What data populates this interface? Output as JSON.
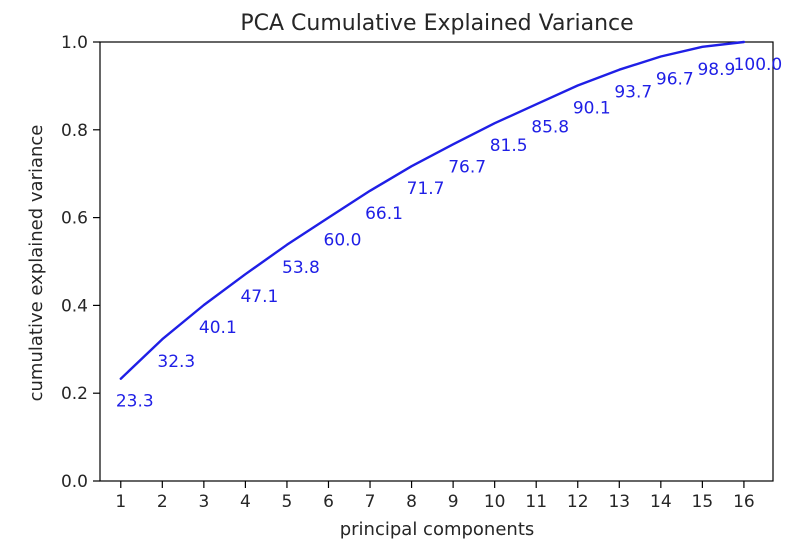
{
  "chart_data": {
    "type": "line",
    "title": "PCA Cumulative Explained Variance",
    "xlabel": "principal components",
    "ylabel": "cumulative explained variance",
    "x": [
      1,
      2,
      3,
      4,
      5,
      6,
      7,
      8,
      9,
      10,
      11,
      12,
      13,
      14,
      15,
      16
    ],
    "xticks": [
      "1",
      "2",
      "3",
      "4",
      "5",
      "6",
      "7",
      "8",
      "9",
      "10",
      "11",
      "12",
      "13",
      "14",
      "15",
      "16"
    ],
    "xlim": [
      0.5,
      16.7
    ],
    "ylim": [
      0.0,
      1.0
    ],
    "yticks": [
      "0.0",
      "0.2",
      "0.4",
      "0.6",
      "0.8",
      "1.0"
    ],
    "grid": false,
    "series": [
      {
        "values": [
          0.233,
          0.323,
          0.401,
          0.471,
          0.538,
          0.6,
          0.661,
          0.717,
          0.767,
          0.815,
          0.858,
          0.901,
          0.937,
          0.967,
          0.989,
          1.0
        ],
        "labels": [
          "23.3",
          "32.3",
          "40.1",
          "47.1",
          "53.8",
          "60.0",
          "66.1",
          "71.7",
          "76.7",
          "81.5",
          "85.8",
          "90.1",
          "93.7",
          "96.7",
          "98.9",
          "100.0"
        ],
        "color": "#1f1fe6"
      }
    ]
  }
}
